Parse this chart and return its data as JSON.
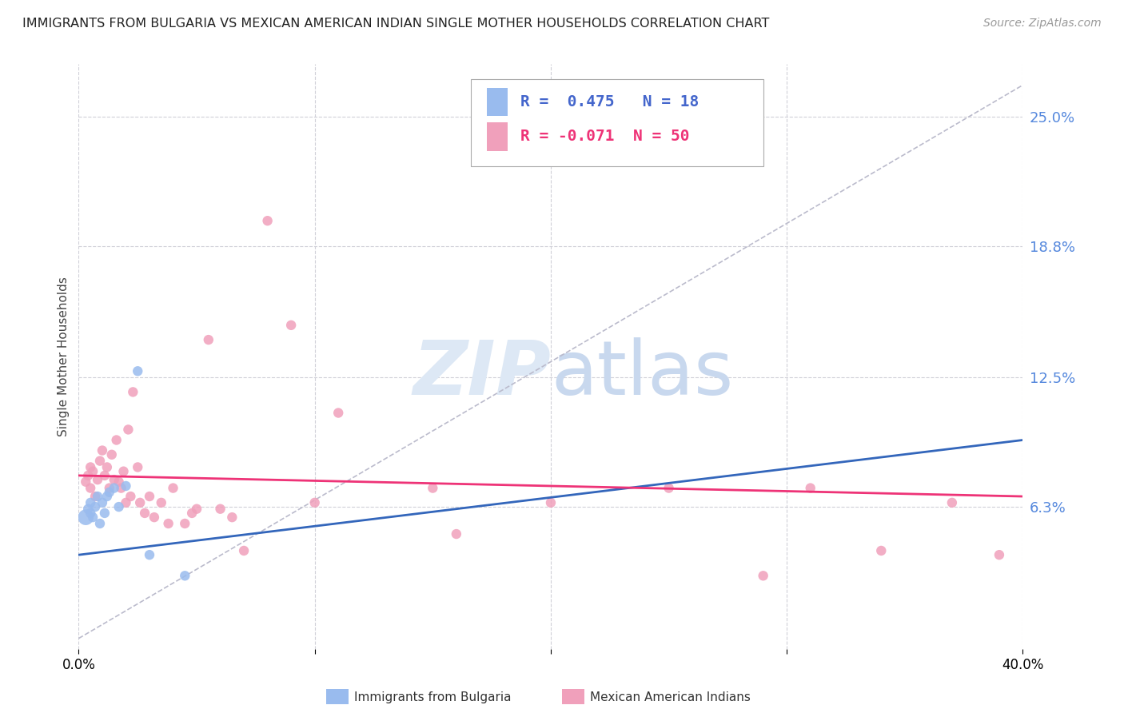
{
  "title": "IMMIGRANTS FROM BULGARIA VS MEXICAN AMERICAN INDIAN SINGLE MOTHER HOUSEHOLDS CORRELATION CHART",
  "source": "Source: ZipAtlas.com",
  "ylabel": "Single Mother Households",
  "xlim": [
    0.0,
    0.4
  ],
  "ylim": [
    -0.005,
    0.275
  ],
  "yticks": [
    0.063,
    0.125,
    0.188,
    0.25
  ],
  "ytick_labels": [
    "6.3%",
    "12.5%",
    "18.8%",
    "25.0%"
  ],
  "xticks": [
    0.0,
    0.1,
    0.2,
    0.3,
    0.4
  ],
  "bg_color": "#ffffff",
  "grid_color": "#d0d0d8",
  "blue_color": "#99bbee",
  "pink_color": "#f0a0bb",
  "blue_line_color": "#3366bb",
  "pink_line_color": "#ee3377",
  "dashed_line_color": "#bbbbcc",
  "watermark_text": "ZIPatlas",
  "legend_R_blue": " 0.475",
  "legend_N_blue": "18",
  "legend_R_pink": "-0.071",
  "legend_N_pink": "50",
  "blue_scatter_x": [
    0.003,
    0.004,
    0.005,
    0.005,
    0.006,
    0.007,
    0.008,
    0.009,
    0.01,
    0.011,
    0.012,
    0.013,
    0.015,
    0.017,
    0.02,
    0.025,
    0.03,
    0.045
  ],
  "blue_scatter_y": [
    0.058,
    0.062,
    0.06,
    0.065,
    0.058,
    0.063,
    0.068,
    0.055,
    0.065,
    0.06,
    0.068,
    0.07,
    0.072,
    0.063,
    0.073,
    0.128,
    0.04,
    0.03
  ],
  "blue_scatter_sizes": [
    200,
    80,
    80,
    80,
    80,
    80,
    80,
    80,
    80,
    80,
    80,
    80,
    80,
    80,
    80,
    80,
    80,
    80
  ],
  "pink_scatter_x": [
    0.003,
    0.004,
    0.005,
    0.005,
    0.006,
    0.007,
    0.008,
    0.009,
    0.01,
    0.011,
    0.012,
    0.013,
    0.014,
    0.015,
    0.016,
    0.017,
    0.018,
    0.019,
    0.02,
    0.021,
    0.022,
    0.023,
    0.025,
    0.026,
    0.028,
    0.03,
    0.032,
    0.035,
    0.038,
    0.04,
    0.045,
    0.048,
    0.05,
    0.055,
    0.06,
    0.065,
    0.07,
    0.08,
    0.09,
    0.1,
    0.11,
    0.15,
    0.16,
    0.2,
    0.25,
    0.29,
    0.31,
    0.34,
    0.37,
    0.39
  ],
  "pink_scatter_y": [
    0.075,
    0.078,
    0.072,
    0.082,
    0.08,
    0.068,
    0.076,
    0.085,
    0.09,
    0.078,
    0.082,
    0.072,
    0.088,
    0.076,
    0.095,
    0.075,
    0.072,
    0.08,
    0.065,
    0.1,
    0.068,
    0.118,
    0.082,
    0.065,
    0.06,
    0.068,
    0.058,
    0.065,
    0.055,
    0.072,
    0.055,
    0.06,
    0.062,
    0.143,
    0.062,
    0.058,
    0.042,
    0.2,
    0.15,
    0.065,
    0.108,
    0.072,
    0.05,
    0.065,
    0.072,
    0.03,
    0.072,
    0.042,
    0.065,
    0.04
  ],
  "pink_scatter_sizes": [
    80,
    80,
    80,
    80,
    80,
    80,
    80,
    80,
    80,
    80,
    80,
    80,
    80,
    80,
    80,
    80,
    80,
    80,
    80,
    80,
    80,
    80,
    80,
    80,
    80,
    80,
    80,
    80,
    80,
    80,
    80,
    80,
    80,
    80,
    80,
    80,
    80,
    80,
    80,
    80,
    80,
    80,
    80,
    80,
    80,
    80,
    80,
    80,
    80,
    80
  ],
  "blue_line": [
    0.0,
    0.4
  ],
  "blue_line_y_start": 0.04,
  "blue_line_y_end": 0.095,
  "pink_line_y_start": 0.078,
  "pink_line_y_end": 0.068,
  "diag_line_x": [
    0.0,
    0.4
  ],
  "diag_line_y": [
    0.0,
    0.265
  ]
}
